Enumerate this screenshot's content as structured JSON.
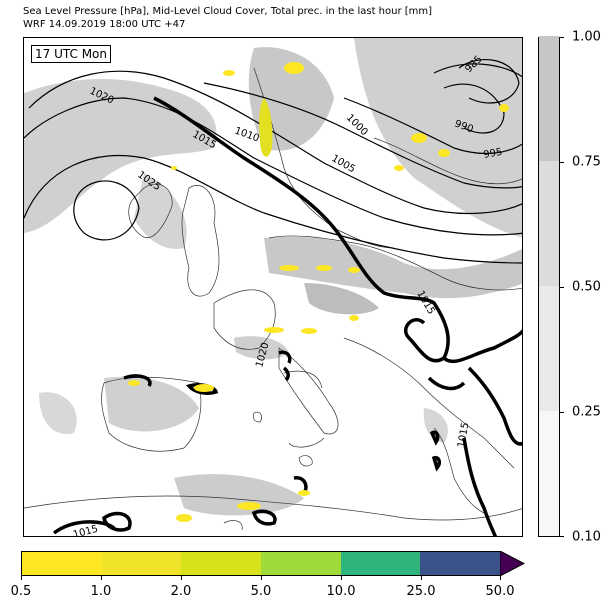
{
  "header": {
    "title_line1": "Sea Level Pressure [hPa], Mid-Level Cloud Cover, Total prec. in the last hour [mm]",
    "title_line2": "WRF 14.09.2019 18:00 UTC +47"
  },
  "map": {
    "time_label": "17 UTC Mon",
    "isobar_labels": [
      "1020",
      "1015",
      "1010",
      "1005",
      "1000",
      "995",
      "990",
      "985",
      "1025",
      "1015",
      "1020",
      "1015",
      "1015"
    ]
  },
  "cloud_colorbar": {
    "ticks": [
      "0.10",
      "0.25",
      "0.50",
      "0.75",
      "1.00"
    ],
    "colors": [
      "#f7f7f7",
      "#e9e9e9",
      "#d9d9d9",
      "#c6c6c6"
    ]
  },
  "precip_colorbar": {
    "ticks": [
      "0.5",
      "1.0",
      "2.0",
      "5.0",
      "10.0",
      "25.0",
      "50.0"
    ],
    "colors": [
      "#fde725",
      "#f0e42a",
      "#d7e21a",
      "#a0da39",
      "#5ec962",
      "#27ad81",
      "#3b528b"
    ],
    "extend_color": "#440154"
  }
}
